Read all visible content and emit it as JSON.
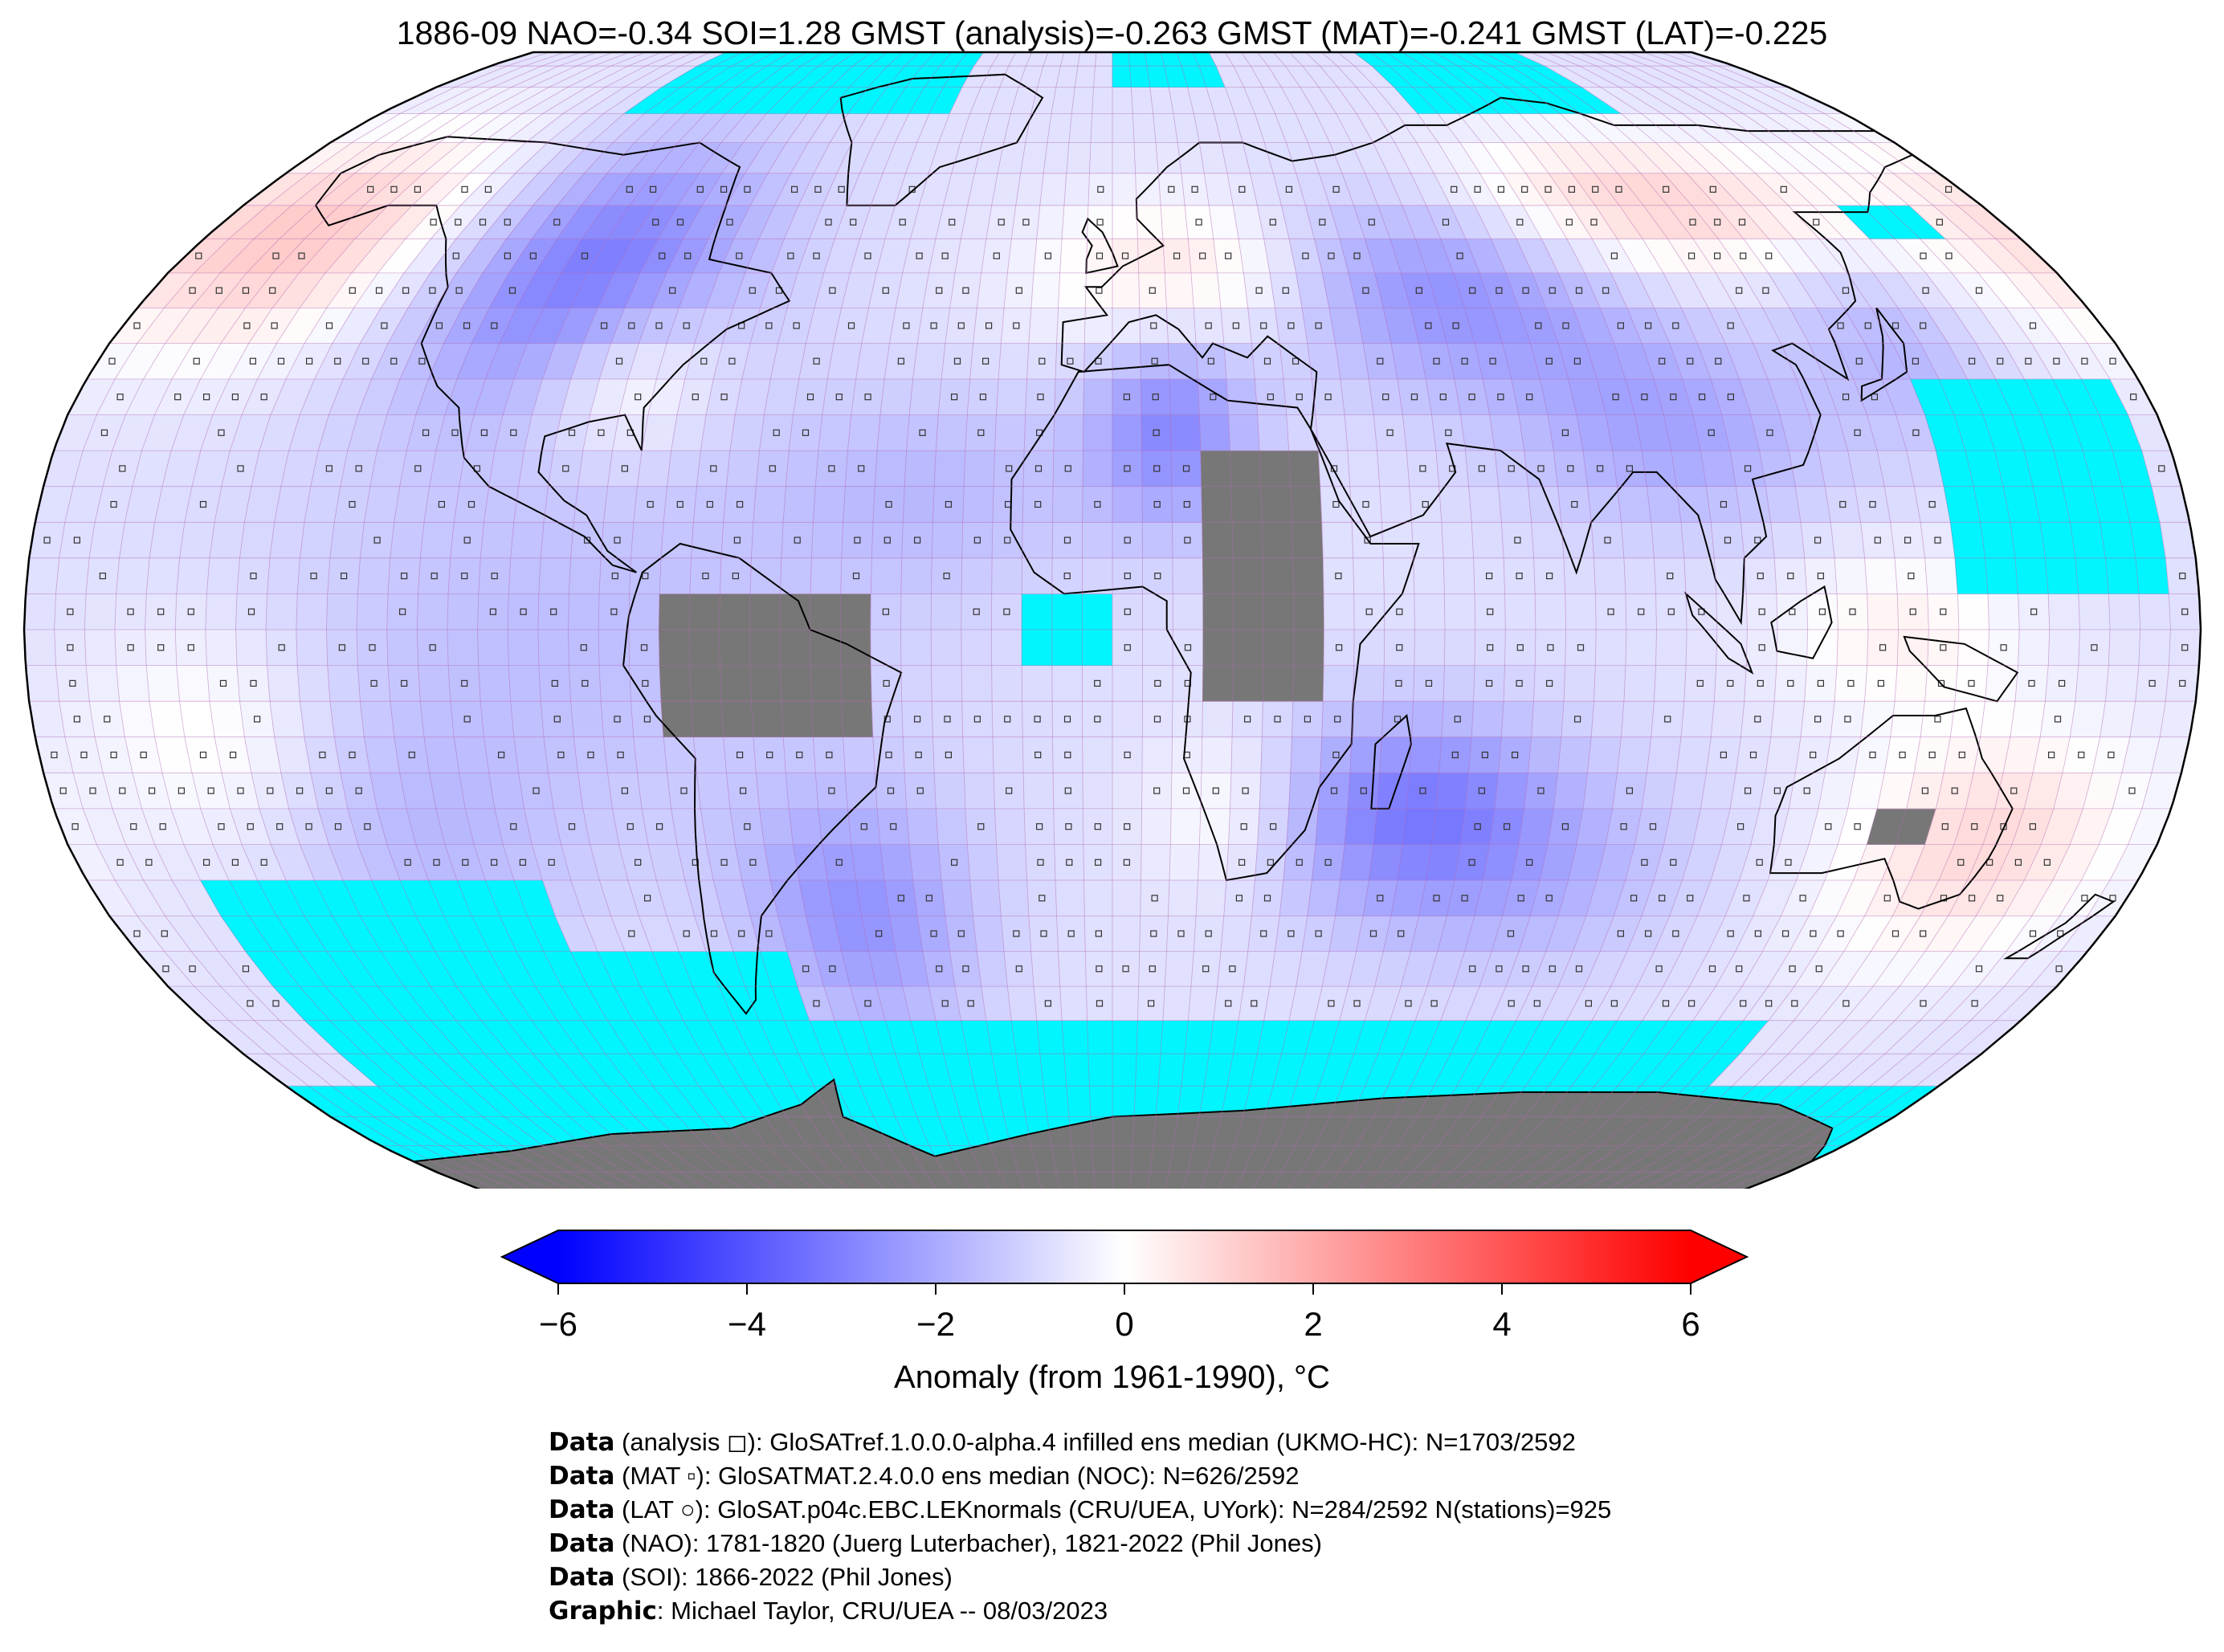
{
  "title": "1886-09 NAO=-0.34 SOI=1.28 GMST (analysis)=-0.263 GMST (MAT)=-0.241 GMST (LAT)=-0.225",
  "map": {
    "projection": "Robinson",
    "colors": {
      "ocean_missing": "#00f5ff",
      "land_missing": "#777777",
      "coastline": "#000000",
      "gridlines": "#b36bb3"
    }
  },
  "colorbar": {
    "ticks": [
      "−6",
      "−4",
      "−2",
      "0",
      "2",
      "4",
      "6"
    ],
    "range": [
      -6,
      6
    ],
    "colors": [
      "#0000ff",
      "#ffffff",
      "#ff0000"
    ],
    "label": "Anomaly (from 1961-1990), °C"
  },
  "credits": [
    {
      "bold": "Data",
      "text": " (analysis ◻): GloSATref.1.0.0.0-alpha.4 infilled ens median (UKMO-HC): N=1703/2592"
    },
    {
      "bold": "Data",
      "text": " (MAT ▫): GloSATMAT.2.4.0.0 ens median (NOC): N=626/2592"
    },
    {
      "bold": "Data",
      "text": " (LAT ○): GloSAT.p04c.EBC.LEKnormals (CRU/UEA, UYork): N=284/2592 N(stations)=925"
    },
    {
      "bold": "Data",
      "text": " (NAO): 1781-1820 (Juerg Luterbacher), 1821-2022 (Phil Jones)"
    },
    {
      "bold": "Data",
      "text": " (SOI): 1866-2022 (Phil Jones)"
    },
    {
      "bold": "Graphic",
      "text": ": Michael Taylor, CRU/UEA -- 08/03/2023"
    }
  ]
}
